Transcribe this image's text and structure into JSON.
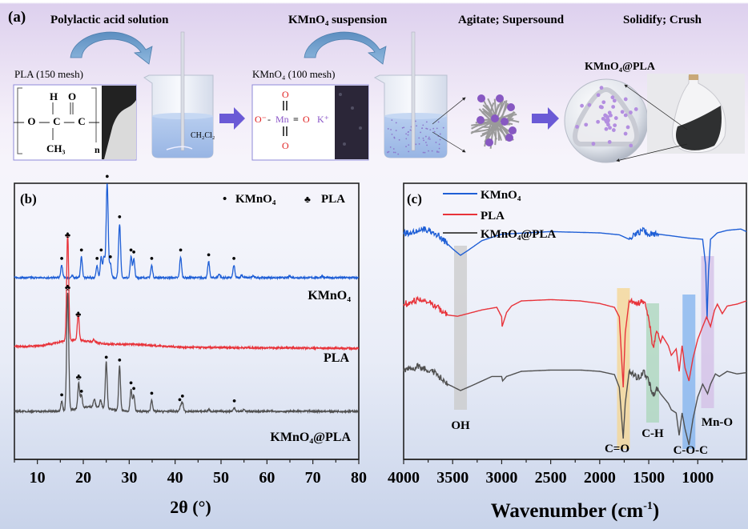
{
  "scheme": {
    "panel_label": "(a)",
    "steps": [
      {
        "label": "Polylactic acid solution"
      },
      {
        "label": "KMnO₄ suspension"
      },
      {
        "label": "Agitate; Supersound"
      },
      {
        "label": "Solidify; Crush"
      }
    ],
    "pla_box": {
      "caption": "PLA (150 mesh)",
      "atoms": {
        "H": "H",
        "O_top": "O",
        "chain": "—O—C—C—",
        "CH3": "CH₃",
        "n": "n"
      }
    },
    "kmno4_box": {
      "caption": "KMnO₄ (100 mesh)",
      "O_minus": "O⁻",
      "dash": "-",
      "Mn": "Mn",
      "eq": "=",
      "O_right": "O",
      "K": "K⁺",
      "O_top": "O",
      "O_bottom": "O"
    },
    "solvent_label": "CH₂Cl₂",
    "product_label": "KMnO₄@PLA",
    "colors": {
      "arrow": "#6a5ad6",
      "curved_arrow": "#6f9ec9",
      "liquid": "#a9c3ea",
      "particle": "#9b6fd0"
    }
  },
  "chart_data": [
    {
      "type": "line",
      "panel_label": "(b)",
      "title": "",
      "xlabel": "2θ (°)",
      "ylabel": "",
      "xlim": [
        5,
        80
      ],
      "xticks": [
        10,
        20,
        30,
        40,
        50,
        60,
        70,
        80
      ],
      "xtick_labels": [
        "10",
        "20",
        "30",
        "40",
        "50",
        "60",
        "70",
        "80"
      ],
      "grid": false,
      "legend": {
        "placement": "top-right",
        "entries": [
          {
            "marker": "•",
            "label": "KMnO₄"
          },
          {
            "marker": "♣",
            "label": "PLA"
          }
        ]
      },
      "series": [
        {
          "name": "KMnO₄",
          "color": "#1f5fd6",
          "baseline_offset": 2.0,
          "peaks": [
            [
              15.3,
              0.13
            ],
            [
              17.6,
              0.02
            ],
            [
              19.6,
              0.22
            ],
            [
              23.0,
              0.13
            ],
            [
              23.9,
              0.22
            ],
            [
              24.5,
              0.22
            ],
            [
              25.2,
              1.0
            ],
            [
              25.9,
              0.15
            ],
            [
              27.9,
              0.57
            ],
            [
              30.4,
              0.22
            ],
            [
              31.0,
              0.2
            ],
            [
              34.9,
              0.13
            ],
            [
              41.2,
              0.22
            ],
            [
              47.3,
              0.17
            ],
            [
              49.6,
              0.04
            ],
            [
              52.8,
              0.13
            ],
            [
              54.5,
              0.03
            ],
            [
              57.0,
              0.02
            ],
            [
              65.0,
              0.02
            ],
            [
              72.0,
              0.02
            ]
          ]
        },
        {
          "name": "PLA",
          "color": "#e8333a",
          "baseline_offset": 1.0,
          "peaks": [
            [
              16.6,
              1.12
            ],
            [
              18.9,
              0.28
            ],
            [
              22.3,
              0.03
            ]
          ],
          "halo": true
        },
        {
          "name": "KMnO₄@PLA",
          "color": "#505050",
          "baseline_offset": 0.0,
          "peaks": [
            [
              15.3,
              0.1
            ],
            [
              16.6,
              1.25
            ],
            [
              19.0,
              0.27
            ],
            [
              19.6,
              0.14
            ],
            [
              22.4,
              0.08
            ],
            [
              23.8,
              0.08
            ],
            [
              25.0,
              0.5
            ],
            [
              27.9,
              0.47
            ],
            [
              30.4,
              0.23
            ],
            [
              31.0,
              0.17
            ],
            [
              34.9,
              0.12
            ],
            [
              41.2,
              0.05
            ],
            [
              41.6,
              0.09
            ],
            [
              47.3,
              0.02
            ],
            [
              52.9,
              0.04
            ],
            [
              55.0,
              0.02
            ]
          ]
        }
      ],
      "annotations": [
        {
          "text": "KMnO₄",
          "series": "KMnO₄"
        },
        {
          "text": "PLA",
          "series": "PLA"
        },
        {
          "text": "KMnO₄@PLA",
          "series": "KMnO₄@PLA"
        }
      ],
      "peak_markers": [
        {
          "series": "KMnO₄",
          "symbol": "•",
          "x": [
            15.3,
            19.6,
            23.0,
            23.9,
            25.2,
            25.9,
            27.9,
            30.4,
            31.0,
            34.9,
            41.2,
            47.3,
            52.8
          ]
        },
        {
          "series": "PLA",
          "symbol": "♣",
          "x": [
            16.6,
            18.9
          ]
        },
        {
          "series": "KMnO₄@PLA",
          "symbol": "♣",
          "x": [
            16.6,
            19.0
          ]
        },
        {
          "series": "KMnO₄@PLA",
          "symbol": "•",
          "x": [
            15.3,
            19.6,
            25.0,
            27.9,
            30.4,
            31.0,
            34.9,
            41.0,
            41.6,
            52.9
          ]
        }
      ]
    },
    {
      "type": "line",
      "panel_label": "(c)",
      "title": "",
      "xlabel": "Wavenumber (cm⁻¹)",
      "xlabel_main": "Wavenumber (cm",
      "xlabel_sup": "-1",
      "xlabel_close": ")",
      "ylabel": "",
      "xlim": [
        4000,
        504
      ],
      "xticks": [
        4000,
        3500,
        3000,
        2500,
        2000,
        1500,
        1000
      ],
      "xtick_labels": [
        "4000",
        "3500",
        "3000",
        "2500",
        "2000",
        "1500",
        "1000"
      ],
      "grid": false,
      "legend": {
        "placement": "top-left",
        "entries": [
          {
            "label": "KMnO₄",
            "color": "#1f5fd6"
          },
          {
            "label": "PLA",
            "color": "#e8333a"
          },
          {
            "label": "KMnO₄@PLA",
            "color": "#505050"
          }
        ]
      },
      "series": [
        {
          "name": "KMnO₄",
          "color": "#1f5fd6",
          "offset": 2.0,
          "points": [
            [
              4000,
              0.78
            ],
            [
              3900,
              0.82
            ],
            [
              3800,
              0.86
            ],
            [
              3700,
              0.82
            ],
            [
              3600,
              0.7
            ],
            [
              3500,
              0.55
            ],
            [
              3420,
              0.45
            ],
            [
              3350,
              0.52
            ],
            [
              3200,
              0.68
            ],
            [
              3000,
              0.78
            ],
            [
              2500,
              0.82
            ],
            [
              2000,
              0.8
            ],
            [
              1800,
              0.77
            ],
            [
              1700,
              0.7
            ],
            [
              1650,
              0.78
            ],
            [
              1560,
              0.84
            ],
            [
              1500,
              0.78
            ],
            [
              1400,
              0.78
            ],
            [
              1200,
              0.74
            ],
            [
              1100,
              0.72
            ],
            [
              950,
              0.7
            ],
            [
              920,
              0.3
            ],
            [
              905,
              -0.55
            ],
            [
              890,
              0.2
            ],
            [
              870,
              0.7
            ],
            [
              800,
              0.8
            ],
            [
              700,
              0.84
            ],
            [
              560,
              0.86
            ],
            [
              504,
              0.82
            ]
          ]
        },
        {
          "name": "PLA",
          "color": "#e8333a",
          "offset": 1.0,
          "points": [
            [
              4000,
              0.75
            ],
            [
              3850,
              0.82
            ],
            [
              3700,
              0.75
            ],
            [
              3550,
              0.58
            ],
            [
              3450,
              0.56
            ],
            [
              3200,
              0.66
            ],
            [
              3050,
              0.7
            ],
            [
              3000,
              0.55
            ],
            [
              2995,
              0.4
            ],
            [
              2950,
              0.62
            ],
            [
              2900,
              0.72
            ],
            [
              2800,
              0.8
            ],
            [
              2500,
              0.82
            ],
            [
              2200,
              0.8
            ],
            [
              2000,
              0.76
            ],
            [
              1850,
              0.7
            ],
            [
              1800,
              0.55
            ],
            [
              1760,
              -0.55
            ],
            [
              1740,
              0.3
            ],
            [
              1700,
              0.8
            ],
            [
              1620,
              0.75
            ],
            [
              1550,
              0.8
            ],
            [
              1500,
              0.55
            ],
            [
              1455,
              0.05
            ],
            [
              1420,
              0.35
            ],
            [
              1380,
              0.15
            ],
            [
              1360,
              0.25
            ],
            [
              1300,
              0.1
            ],
            [
              1270,
              -0.05
            ],
            [
              1220,
              0.05
            ],
            [
              1190,
              -0.3
            ],
            [
              1160,
              0.1
            ],
            [
              1130,
              -0.25
            ],
            [
              1090,
              -0.45
            ],
            [
              1050,
              -0.1
            ],
            [
              1000,
              0.2
            ],
            [
              950,
              0.4
            ],
            [
              910,
              0.55
            ],
            [
              870,
              0.4
            ],
            [
              830,
              0.65
            ],
            [
              800,
              0.75
            ],
            [
              750,
              0.6
            ],
            [
              700,
              0.72
            ],
            [
              600,
              0.75
            ],
            [
              504,
              0.8
            ]
          ]
        },
        {
          "name": "KMnO₄@PLA",
          "color": "#505050",
          "offset": 0.0,
          "points": [
            [
              4000,
              0.7
            ],
            [
              3850,
              0.78
            ],
            [
              3700,
              0.7
            ],
            [
              3550,
              0.5
            ],
            [
              3420,
              0.4
            ],
            [
              3300,
              0.48
            ],
            [
              3100,
              0.62
            ],
            [
              3000,
              0.62
            ],
            [
              2990,
              0.55
            ],
            [
              2950,
              0.62
            ],
            [
              2800,
              0.7
            ],
            [
              2500,
              0.72
            ],
            [
              2200,
              0.72
            ],
            [
              2000,
              0.7
            ],
            [
              1850,
              0.65
            ],
            [
              1800,
              0.45
            ],
            [
              1760,
              -0.35
            ],
            [
              1740,
              0.2
            ],
            [
              1700,
              0.7
            ],
            [
              1620,
              0.6
            ],
            [
              1550,
              0.68
            ],
            [
              1500,
              0.55
            ],
            [
              1455,
              0.3
            ],
            [
              1420,
              0.45
            ],
            [
              1380,
              0.35
            ],
            [
              1300,
              0.2
            ],
            [
              1270,
              0.1
            ],
            [
              1220,
              0.05
            ],
            [
              1190,
              -0.3
            ],
            [
              1160,
              0.05
            ],
            [
              1130,
              -0.2
            ],
            [
              1090,
              -0.45
            ],
            [
              1050,
              -0.05
            ],
            [
              1000,
              0.3
            ],
            [
              950,
              0.5
            ],
            [
              900,
              0.35
            ],
            [
              870,
              0.5
            ],
            [
              820,
              0.66
            ],
            [
              780,
              0.62
            ],
            [
              700,
              0.7
            ],
            [
              600,
              0.66
            ],
            [
              504,
              0.68
            ]
          ]
        }
      ],
      "bands": [
        {
          "label": "OH",
          "center": 3420,
          "color": "#c9c9c9"
        },
        {
          "label": "C=O",
          "center": 1758,
          "color": "#f6d58f"
        },
        {
          "label": "C-H",
          "center": 1460,
          "color": "#a9d6b9"
        },
        {
          "label": "C-O-C",
          "center": 1090,
          "color": "#7fb2ee"
        },
        {
          "label": "Mn-O",
          "center": 900,
          "color": "#d3bde6"
        }
      ]
    }
  ]
}
